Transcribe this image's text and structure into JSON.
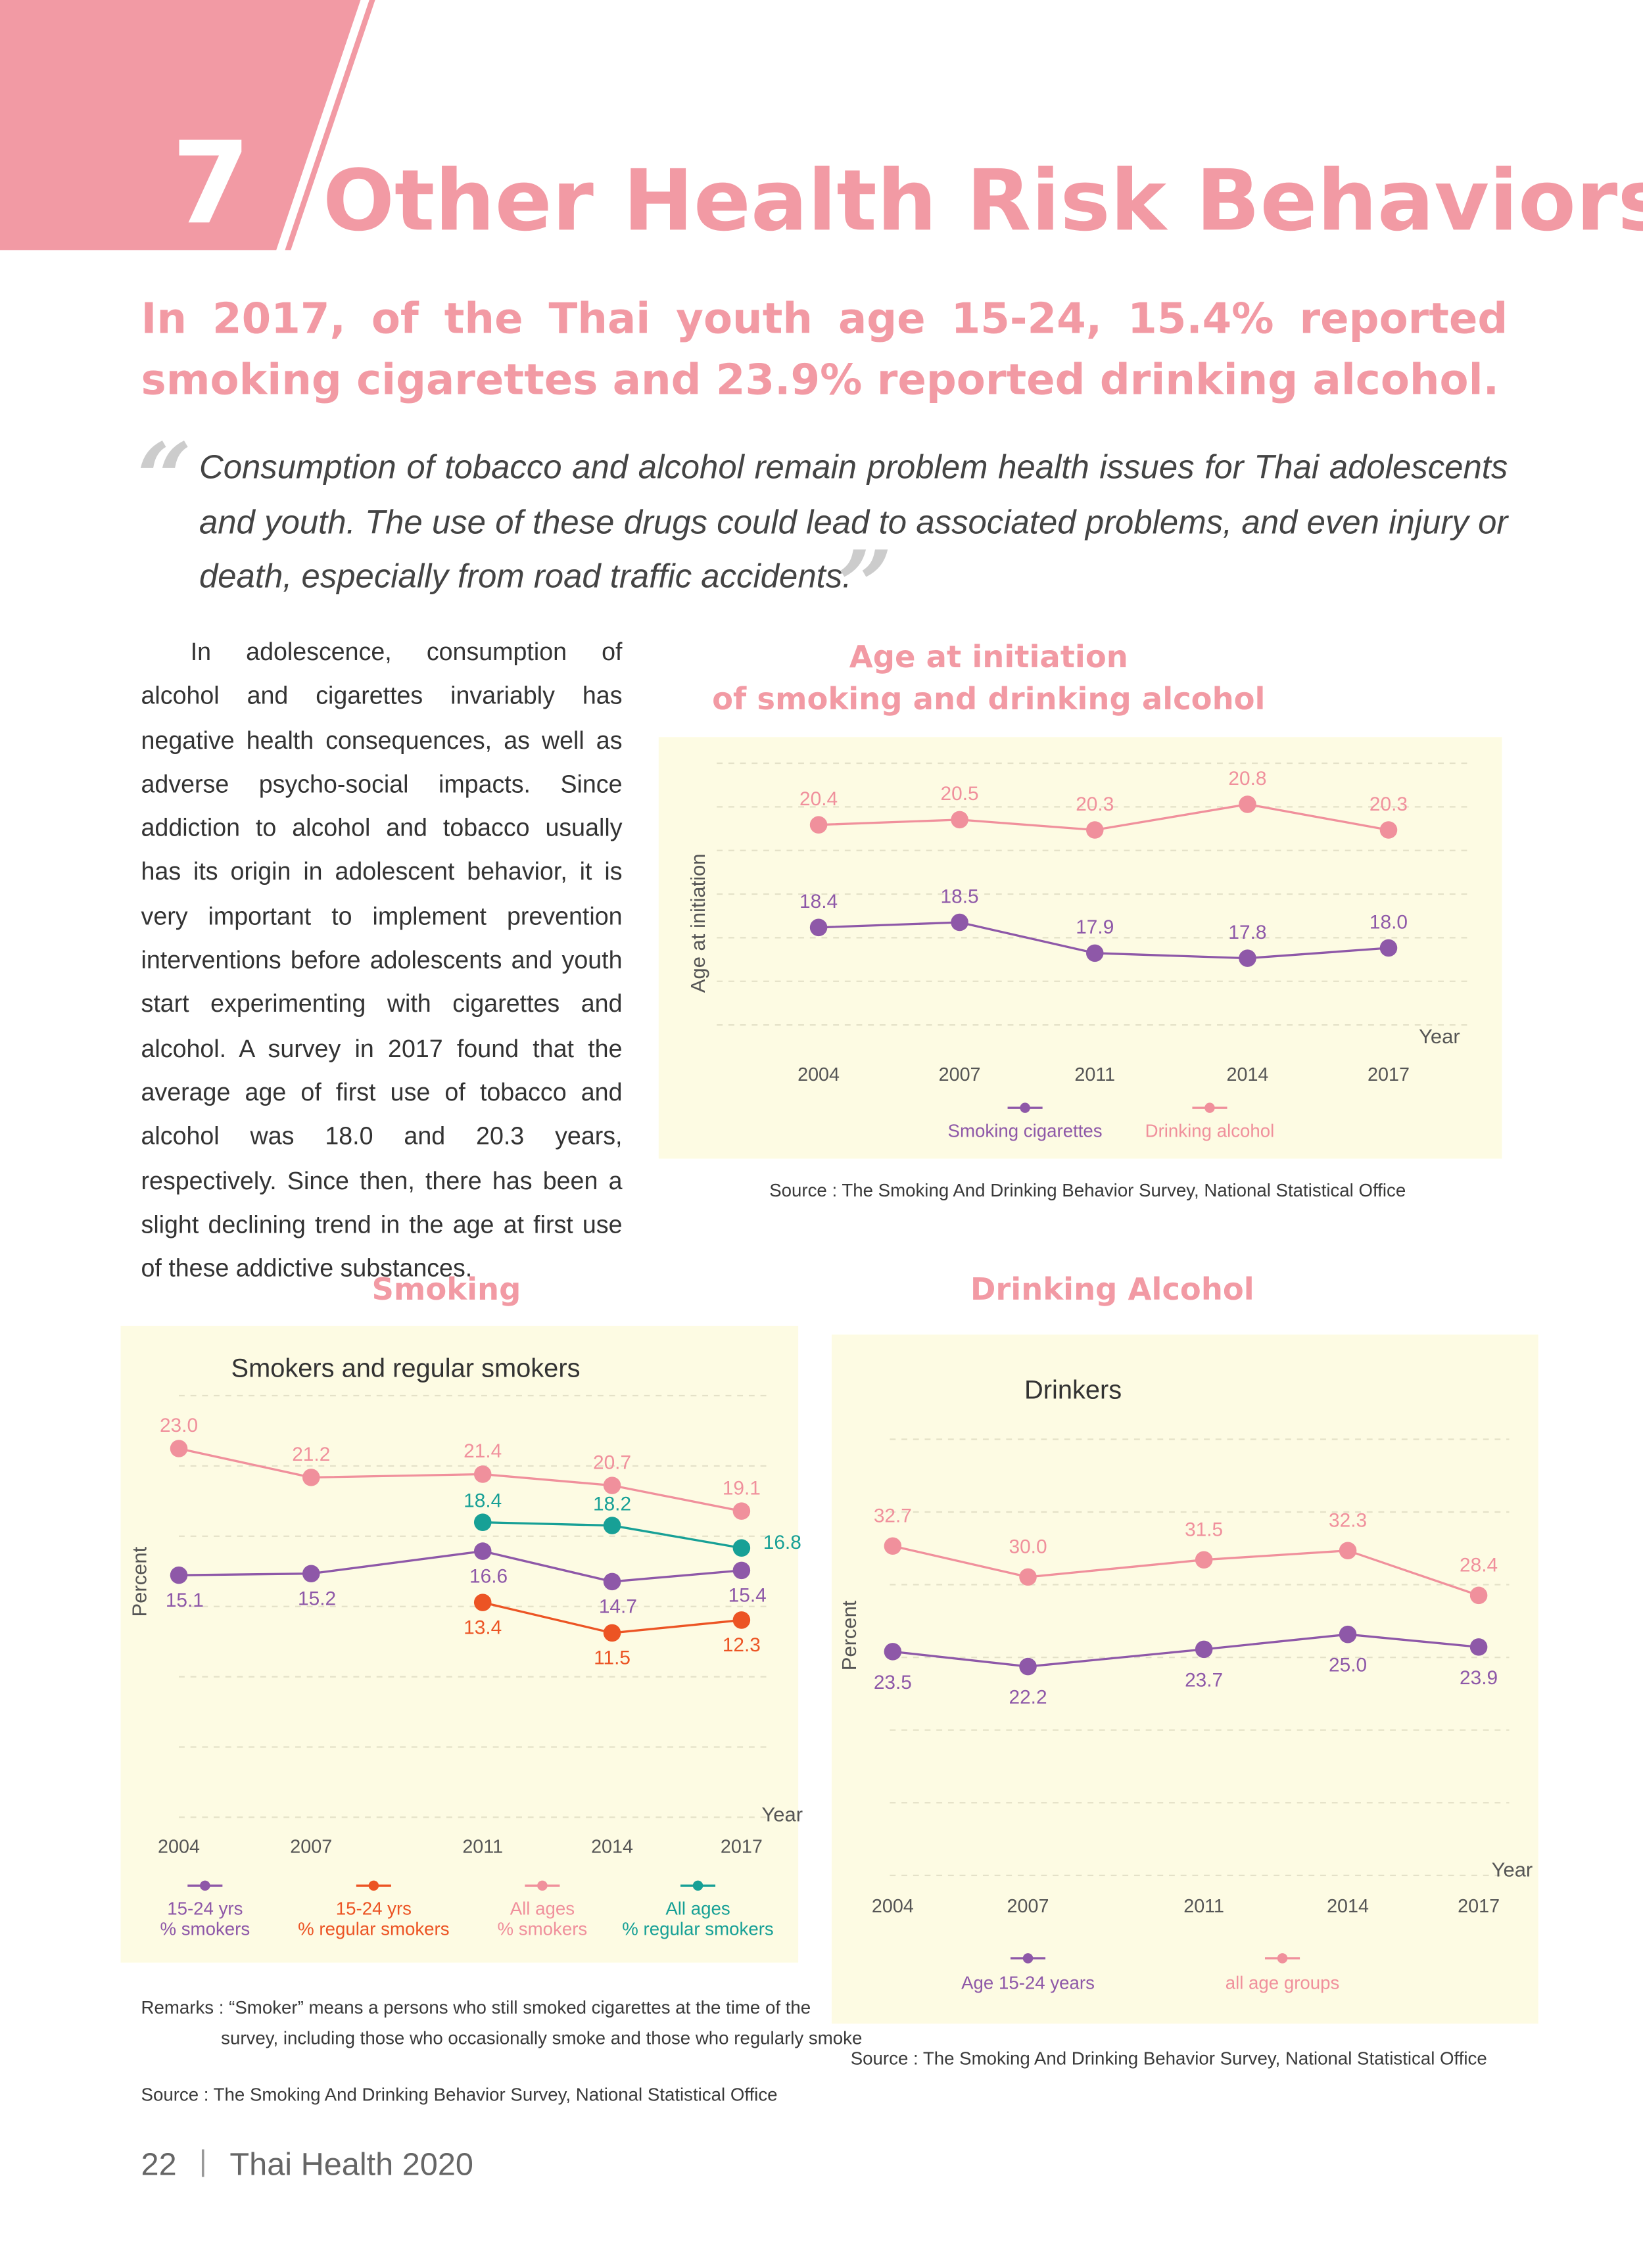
{
  "header": {
    "number": "7",
    "title": "Other Health Risk Behaviors"
  },
  "lead": "In 2017, of the Thai youth age 15-24, 15.4% reported smoking cigarettes and 23.9% reported drinking alcohol.",
  "quote": {
    "open": "“",
    "text": "Consumption of tobacco and alcohol remain problem health issues for Thai adolescents and youth. The use of these drugs could lead to associated problems, and even injury or death, especially from road traffic accidents.",
    "close": "”"
  },
  "body": "In adolescence, consumption of alcohol and cigarettes invariably has negative health consequences, as well as adverse psycho-social impacts. Since addiction to alcohol and tobacco usually has its origin in adolescent behavior, it is very important to implement prevention interventions before adolescents and youth start experimenting with cigarettes and alcohol. A survey in 2017 found that the average age of first use of tobacco and alcohol was 18.0 and 20.3 years, respectively. Since then, there has been a slight declining trend in the age at first use of these addictive substances.",
  "chart_data": [
    {
      "type": "line",
      "title": "Age at initiation\nof smoking and drinking alcohol",
      "ylabel": "Age at initiation",
      "xlabel": "Year",
      "categories": [
        "2004",
        "2007",
        "2011",
        "2014",
        "2017"
      ],
      "ylim": [
        16.5,
        21.6
      ],
      "series": [
        {
          "name": "Smoking cigarettes",
          "color": "#8e58a8",
          "values": [
            18.4,
            18.5,
            17.9,
            17.8,
            18.0
          ],
          "value_labels": [
            "18.4",
            "18.5",
            "17.9",
            "17.8",
            "18.0"
          ]
        },
        {
          "name": "Drinking alcohol",
          "color": "#f0909c",
          "values": [
            20.4,
            20.5,
            20.3,
            20.8,
            20.3
          ],
          "value_labels": [
            "20.4",
            "20.5",
            "20.3",
            "20.8",
            "20.3"
          ]
        }
      ],
      "source": "Source : The Smoking And Drinking Behavior Survey, National Statistical Office"
    },
    {
      "type": "line",
      "section": "Smoking",
      "title": "Smokers and regular smokers",
      "ylabel": "Percent",
      "xlabel": "Year",
      "categories": [
        "2004",
        "2007",
        "2011",
        "2014",
        "2017"
      ],
      "ylim": [
        0,
        26.3
      ],
      "series": [
        {
          "name": "15-24 yrs\n% smokers",
          "color": "#8e58a8",
          "values": [
            15.1,
            15.2,
            16.6,
            14.7,
            15.4
          ],
          "value_labels": [
            "15.1",
            "15.2",
            "16.6",
            "14.7",
            "15.4"
          ]
        },
        {
          "name": "15-24 yrs\n% regular smokers",
          "color": "#ec5424",
          "values": [
            null,
            null,
            13.4,
            11.5,
            12.3
          ],
          "value_labels": [
            null,
            null,
            "13.4",
            "11.5",
            "12.3"
          ]
        },
        {
          "name": "All ages\n% smokers",
          "color": "#f0909c",
          "values": [
            23.0,
            21.2,
            21.4,
            20.7,
            19.1
          ],
          "value_labels": [
            "23.0",
            "21.2",
            "21.4",
            "20.7",
            "19.1"
          ]
        },
        {
          "name": "All ages\n% regular smokers",
          "color": "#17a096",
          "values": [
            null,
            null,
            18.4,
            18.2,
            16.8
          ],
          "value_labels": [
            null,
            null,
            "18.4",
            "18.2",
            "16.8"
          ]
        }
      ],
      "remarks": "Remarks : “Smoker” means a persons who still smoked cigarettes at the time of the survey, including those who occasionally smoke and those who regularly smoke",
      "source": "Source : The Smoking And Drinking Behavior Survey, National Statistical Office"
    },
    {
      "type": "line",
      "section": "Drinking Alcohol",
      "title": "Drinkers",
      "ylabel": "Percent",
      "xlabel": "Year",
      "categories": [
        "2004",
        "2007",
        "2011",
        "2014",
        "2017"
      ],
      "ylim": [
        4,
        42
      ],
      "series": [
        {
          "name": "Age 15-24 years",
          "color": "#8e58a8",
          "values": [
            23.5,
            22.2,
            23.7,
            25.0,
            23.9
          ],
          "value_labels": [
            "23.5",
            "22.2",
            "23.7",
            "25.0",
            "23.9"
          ]
        },
        {
          "name": "all age groups",
          "color": "#f0909c",
          "values": [
            32.7,
            30.0,
            31.5,
            32.3,
            28.4
          ],
          "value_labels": [
            "32.7",
            "30.0",
            "31.5",
            "32.3",
            "28.4"
          ]
        }
      ],
      "source": "Source : The Smoking And Drinking Behavior Survey, National Statistical Office"
    }
  ],
  "footer": {
    "page": "22",
    "separator": "|",
    "publication": "Thai Health 2020"
  }
}
